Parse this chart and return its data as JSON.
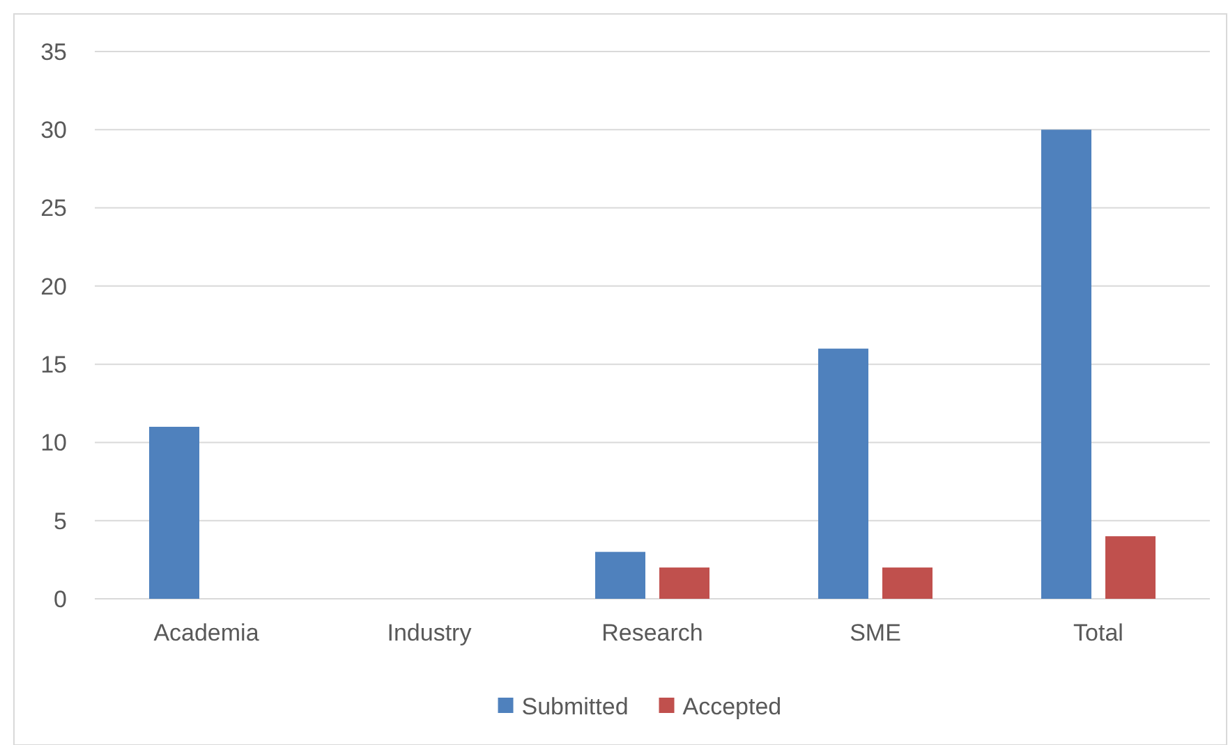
{
  "chart_data": {
    "type": "bar",
    "categories": [
      "Academia",
      "Industry",
      "Research",
      "SME",
      "Total"
    ],
    "series": [
      {
        "name": "Submitted",
        "color": "#4f81bd",
        "values": [
          11,
          0,
          3,
          16,
          30
        ]
      },
      {
        "name": "Accepted",
        "color": "#c0504d",
        "values": [
          0,
          0,
          2,
          2,
          4
        ]
      }
    ],
    "ylim": [
      0,
      35
    ],
    "yticks": [
      0,
      5,
      10,
      15,
      20,
      25,
      30,
      35
    ],
    "grid": "y",
    "legend": "bottom"
  }
}
